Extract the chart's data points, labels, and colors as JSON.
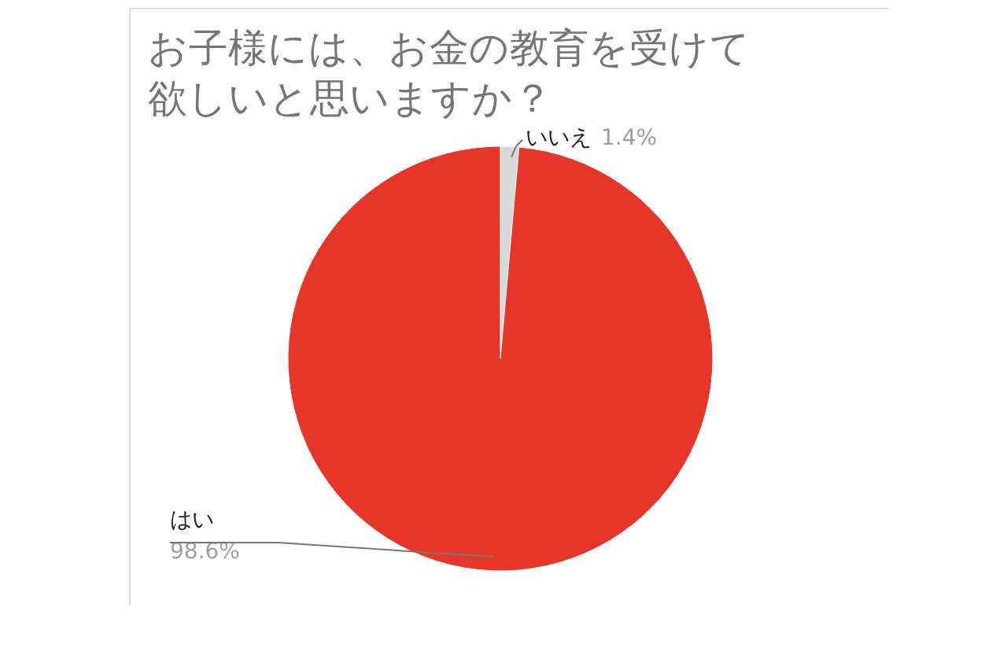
{
  "chart_data": {
    "type": "pie",
    "title": "お子様には、お金の教育を受けて欲しいと思いますか？",
    "categories": [
      "いいえ",
      "はい"
    ],
    "values": [
      1.4,
      98.6
    ],
    "colors": [
      "#d9d9d9",
      "#e8352a"
    ],
    "value_labels": [
      "1.4%",
      "98.6%"
    ],
    "legend": false
  }
}
